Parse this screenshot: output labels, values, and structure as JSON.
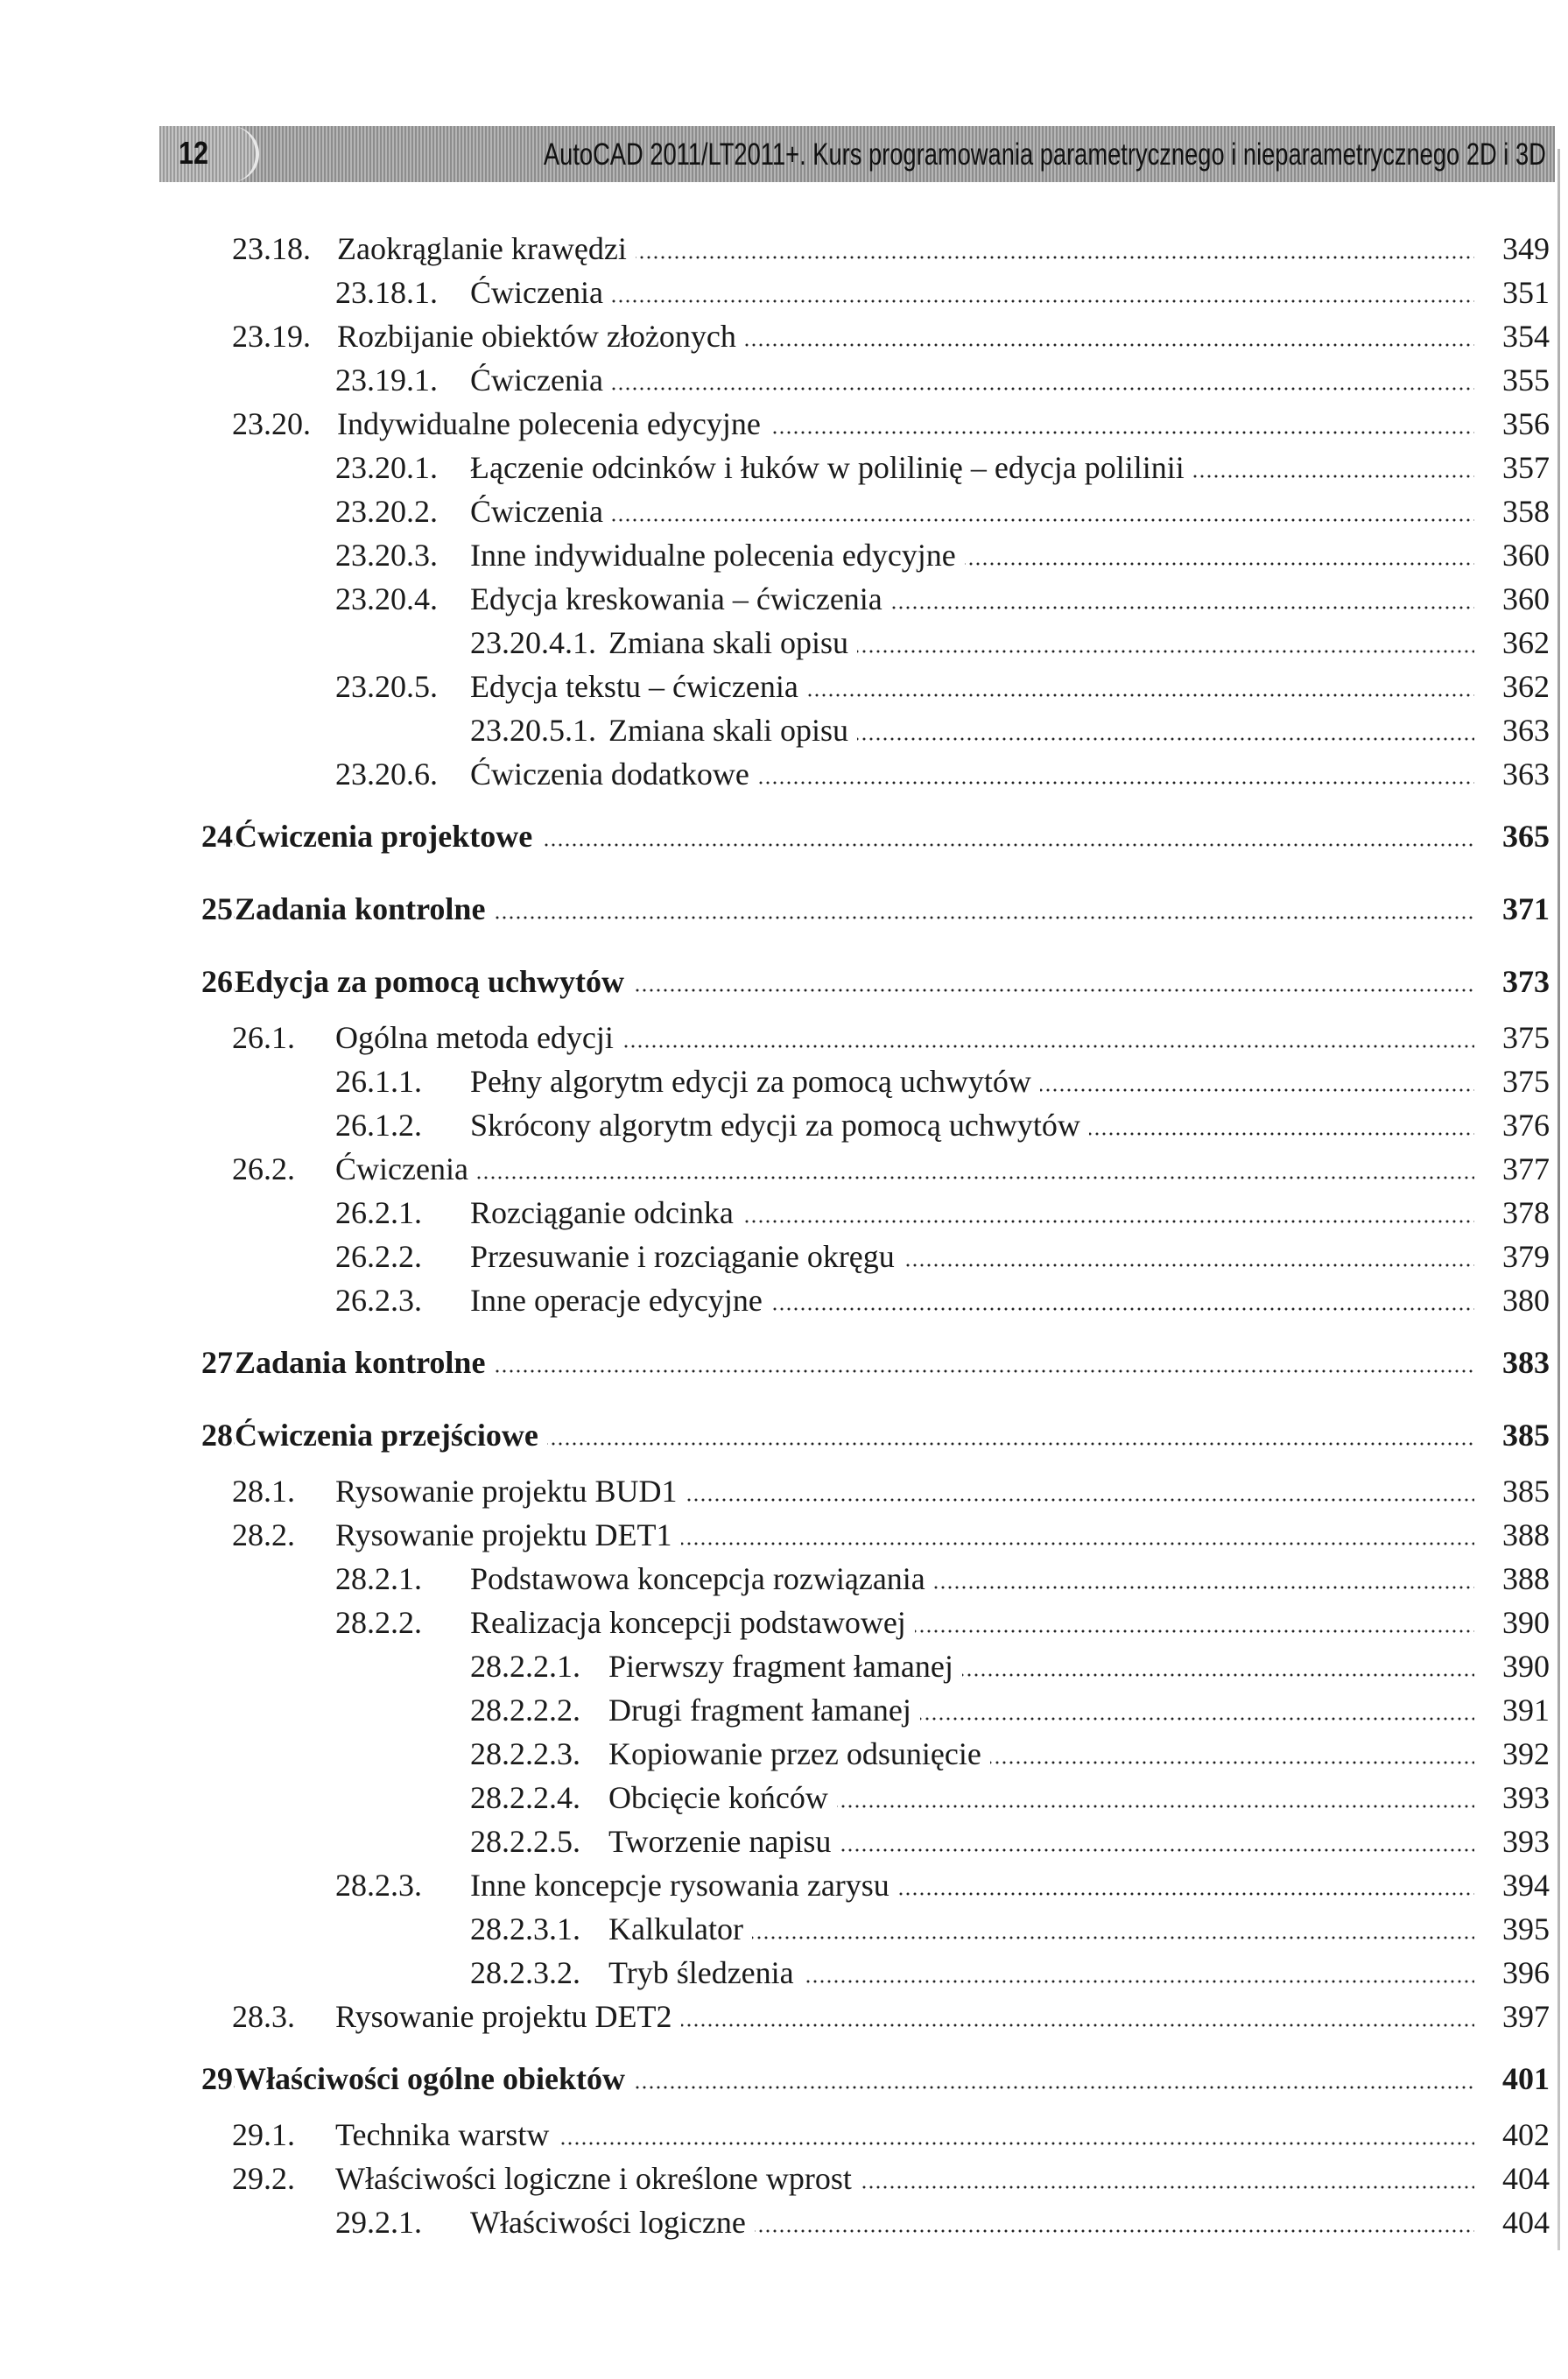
{
  "header": {
    "page_number": "12",
    "title": "AutoCAD 2011/LT2011+. Kurs programowania parametrycznego i nieparametrycznego 2D i 3D"
  },
  "toc": [
    {
      "num": "23.18.",
      "title": "Zaokrąglanie krawędzi",
      "page": "349",
      "level": "sec-inline"
    },
    {
      "num": "23.18.1.",
      "title": "Ćwiczenia",
      "page": "351",
      "level": "3"
    },
    {
      "num": "23.19.",
      "title": "Rozbijanie obiektów złożonych",
      "page": "354",
      "level": "sec-inline"
    },
    {
      "num": "23.19.1.",
      "title": "Ćwiczenia",
      "page": "355",
      "level": "3"
    },
    {
      "num": "23.20.",
      "title": "Indywidualne polecenia edycyjne",
      "page": "356",
      "level": "sec-inline"
    },
    {
      "num": "23.20.1.",
      "title": "Łączenie odcinków i łuków w polilinię – edycja polilinii",
      "page": "357",
      "level": "3"
    },
    {
      "num": "23.20.2.",
      "title": "Ćwiczenia",
      "page": "358",
      "level": "3"
    },
    {
      "num": "23.20.3.",
      "title": "Inne indywidualne polecenia edycyjne",
      "page": "360",
      "level": "3"
    },
    {
      "num": "23.20.4.",
      "title": "Edycja kreskowania – ćwiczenia",
      "page": "360",
      "level": "3"
    },
    {
      "num": "23.20.4.1.",
      "title": "Zmiana skali opisu",
      "page": "362",
      "level": "4"
    },
    {
      "num": "23.20.5.",
      "title": "Edycja tekstu – ćwiczenia",
      "page": "362",
      "level": "3"
    },
    {
      "num": "23.20.5.1.",
      "title": "Zmiana skali opisu",
      "page": "363",
      "level": "4"
    },
    {
      "num": "23.20.6.",
      "title": "Ćwiczenia dodatkowe",
      "page": "363",
      "level": "3"
    },
    {
      "num": "24.",
      "title": "Ćwiczenia projektowe",
      "page": "365",
      "level": "chapter"
    },
    {
      "num": "25.",
      "title": "Zadania kontrolne",
      "page": "371",
      "level": "chapter"
    },
    {
      "num": "26.",
      "title": "Edycja za pomocą uchwytów",
      "page": "373",
      "level": "chapter"
    },
    {
      "num": "26.1.",
      "title": "Ogólna metoda edycji",
      "page": "375",
      "level": "2"
    },
    {
      "num": "26.1.1.",
      "title": "Pełny algorytm edycji za pomocą uchwytów",
      "page": "375",
      "level": "3"
    },
    {
      "num": "26.1.2.",
      "title": "Skrócony algorytm edycji za pomocą uchwytów",
      "page": "376",
      "level": "3"
    },
    {
      "num": "26.2.",
      "title": "Ćwiczenia",
      "page": "377",
      "level": "2"
    },
    {
      "num": "26.2.1.",
      "title": "Rozciąganie odcinka",
      "page": "378",
      "level": "3"
    },
    {
      "num": "26.2.2.",
      "title": "Przesuwanie i rozciąganie okręgu",
      "page": "379",
      "level": "3"
    },
    {
      "num": "26.2.3.",
      "title": "Inne operacje edycyjne",
      "page": "380",
      "level": "3"
    },
    {
      "num": "27.",
      "title": "Zadania kontrolne",
      "page": "383",
      "level": "chapter"
    },
    {
      "num": "28.",
      "title": "Ćwiczenia przejściowe",
      "page": "385",
      "level": "chapter"
    },
    {
      "num": "28.1.",
      "title": "Rysowanie projektu BUD1",
      "page": "385",
      "level": "2"
    },
    {
      "num": "28.2.",
      "title": "Rysowanie projektu DET1",
      "page": "388",
      "level": "2"
    },
    {
      "num": "28.2.1.",
      "title": "Podstawowa koncepcja rozwiązania",
      "page": "388",
      "level": "3"
    },
    {
      "num": "28.2.2.",
      "title": "Realizacja koncepcji podstawowej",
      "page": "390",
      "level": "3"
    },
    {
      "num": "28.2.2.1.",
      "title": "Pierwszy fragment łamanej",
      "page": "390",
      "level": "4"
    },
    {
      "num": "28.2.2.2.",
      "title": "Drugi fragment łamanej",
      "page": "391",
      "level": "4"
    },
    {
      "num": "28.2.2.3.",
      "title": "Kopiowanie przez odsunięcie",
      "page": "392",
      "level": "4"
    },
    {
      "num": "28.2.2.4.",
      "title": "Obcięcie końców",
      "page": "393",
      "level": "4"
    },
    {
      "num": "28.2.2.5.",
      "title": "Tworzenie napisu",
      "page": "393",
      "level": "4"
    },
    {
      "num": "28.2.3.",
      "title": "Inne koncepcje rysowania zarysu",
      "page": "394",
      "level": "3"
    },
    {
      "num": "28.2.3.1.",
      "title": "Kalkulator",
      "page": "395",
      "level": "4"
    },
    {
      "num": "28.2.3.2.",
      "title": "Tryb śledzenia",
      "page": "396",
      "level": "4"
    },
    {
      "num": "28.3.",
      "title": "Rysowanie projektu DET2",
      "page": "397",
      "level": "2"
    },
    {
      "num": "29.",
      "title": "Właściwości ogólne obiektów",
      "page": "401",
      "level": "chapter"
    },
    {
      "num": "29.1.",
      "title": "Technika warstw",
      "page": "402",
      "level": "2"
    },
    {
      "num": "29.2.",
      "title": "Właściwości logiczne i określone wprost",
      "page": "404",
      "level": "2"
    },
    {
      "num": "29.2.1.",
      "title": "Właściwości logiczne",
      "page": "404",
      "level": "3"
    }
  ]
}
